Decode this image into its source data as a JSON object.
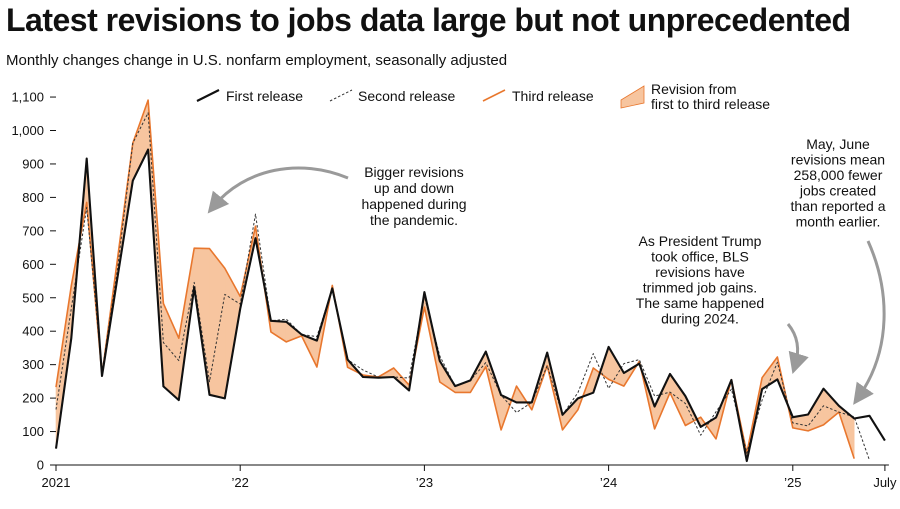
{
  "title": "Latest revisions to jobs data large but not unprecedented",
  "subtitle": "Monthly changes change in U.S. nonfarm employment, seasonally adjusted",
  "colors": {
    "first": "#111111",
    "second": "#333333",
    "third": "#e8772e",
    "band": "#f7c59f"
  },
  "chart_data": {
    "type": "line",
    "x_start": "2021-01",
    "ylim": [
      0,
      1100
    ],
    "yticks": [
      "0",
      "100",
      "200",
      "300",
      "400",
      "500",
      "600",
      "700",
      "800",
      "900",
      "1,000",
      "1,100"
    ],
    "xticks": [
      {
        "label": "2021",
        "month_index": 0
      },
      {
        "label": "’22",
        "month_index": 12
      },
      {
        "label": "’23",
        "month_index": 24
      },
      {
        "label": "’24",
        "month_index": 36
      },
      {
        "label": "’25",
        "month_index": 48
      },
      {
        "label": "July",
        "month_index": 54
      }
    ],
    "legend": [
      {
        "key": "first",
        "label": "First release"
      },
      {
        "key": "second",
        "label": "Second release"
      },
      {
        "key": "third",
        "label": "Third release"
      },
      {
        "key": "band",
        "label": "Revision from first to third release"
      }
    ],
    "legend_band_lines": [
      "Revision from",
      "first to third release"
    ],
    "series": [
      {
        "name": "First release",
        "key": "first",
        "values": [
          49,
          379,
          916,
          266,
          559,
          850,
          943,
          235,
          194,
          531,
          210,
          199,
          467,
          678,
          431,
          428,
          390,
          372,
          528,
          315,
          263,
          261,
          263,
          223,
          517,
          311,
          236,
          253,
          339,
          209,
          187,
          187,
          336,
          150,
          199,
          216,
          353,
          275,
          303,
          175,
          272,
          206,
          114,
          142,
          254,
          12,
          227,
          256,
          143,
          151,
          228,
          177,
          139,
          147,
          73
        ]
      },
      {
        "name": "Second release",
        "key": "second",
        "values": [
          166,
          468,
          770,
          278,
          583,
          962,
          1053,
          366,
          312,
          546,
          249,
          510,
          481,
          750,
          431,
          436,
          390,
          384,
          526,
          315,
          284,
          263,
          263,
          260,
          504,
          326,
          236,
          253,
          306,
          209,
          157,
          187,
          297,
          150,
          216,
          333,
          229,
          303,
          315,
          206,
          218,
          184,
          89,
          159,
          227,
          36,
          194,
          307,
          126,
          117,
          177,
          158,
          144,
          14,
          null
        ]
      },
      {
        "name": "Third release",
        "key": "third",
        "values": [
          233,
          536,
          785,
          269,
          614,
          962,
          1091,
          483,
          379,
          648,
          647,
          588,
          504,
          714,
          398,
          368,
          386,
          293,
          537,
          292,
          269,
          263,
          290,
          239,
          472,
          248,
          217,
          217,
          294,
          105,
          236,
          165,
          297,
          105,
          165,
          290,
          256,
          236,
          310,
          108,
          216,
          118,
          143,
          78,
          255,
          36,
          261,
          323,
          111,
          102,
          120,
          158,
          19,
          null,
          null
        ]
      }
    ],
    "annotations": [
      {
        "lines": [
          "Bigger revisions",
          "up and down",
          "happened during",
          "the pandemic."
        ]
      },
      {
        "lines": [
          "As President Trump",
          "took office, BLS",
          "revisions have",
          "trimmed job gains.",
          "The same happened",
          "during 2024."
        ]
      },
      {
        "lines": [
          "May, June",
          "revisions mean",
          "258,000 fewer",
          "jobs created",
          "than reported a",
          "month earlier."
        ]
      }
    ]
  }
}
